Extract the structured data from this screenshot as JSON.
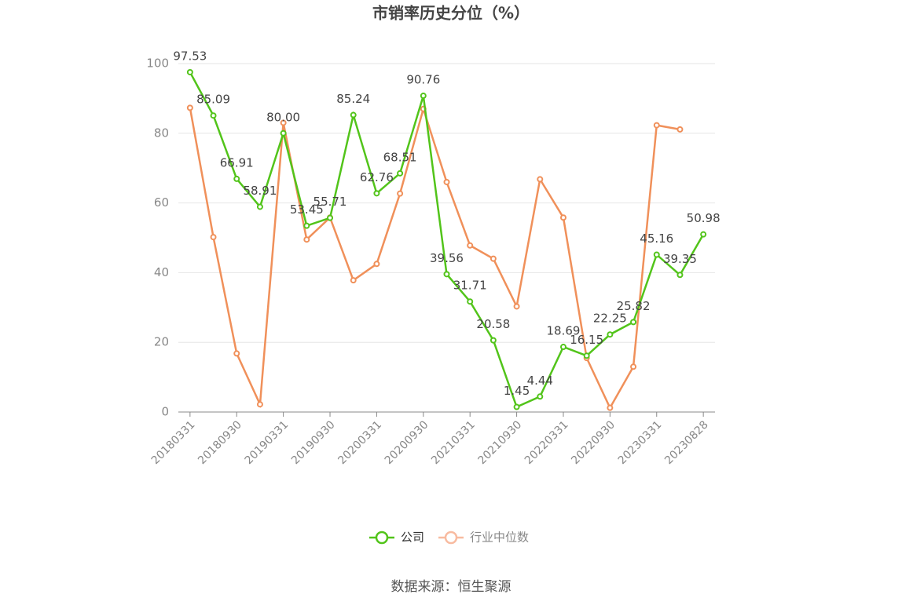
{
  "chart_data": {
    "type": "line",
    "title": "市销率历史分位（%）",
    "source": "数据来源：恒生聚源",
    "categories": [
      "20180331",
      null,
      "20180930",
      null,
      "20190331",
      null,
      "20190930",
      null,
      "20200331",
      null,
      "20200930",
      null,
      "20210331",
      null,
      "20210930",
      null,
      "20220331",
      null,
      "20220930",
      null,
      "20230331",
      null,
      "20230828"
    ],
    "series": [
      {
        "name": "公司",
        "color": "#52c41a",
        "values": [
          97.53,
          85.09,
          66.91,
          58.91,
          80.0,
          53.45,
          55.71,
          85.24,
          62.76,
          68.51,
          90.76,
          39.56,
          31.71,
          20.58,
          1.45,
          4.44,
          18.69,
          16.15,
          22.25,
          25.82,
          45.16,
          39.35,
          50.98
        ],
        "value_labels": [
          "97.53",
          "85.09",
          "66.91",
          "58.91",
          "80.00",
          "53.45",
          "55.71",
          "85.24",
          "62.76",
          "68.51",
          "90.76",
          "39.56",
          "31.71",
          "20.58",
          "1.45",
          "4.44",
          "18.69",
          "16.15",
          "22.25",
          "25.82",
          "45.16",
          "39.35",
          "50.98"
        ]
      },
      {
        "name": "行业中位数",
        "color": "#f0905a",
        "values": [
          87.3,
          50.2,
          16.8,
          2.2,
          83.0,
          49.5,
          55.8,
          37.8,
          42.5,
          62.7,
          87.0,
          66.0,
          47.8,
          44.0,
          30.3,
          66.8,
          55.8,
          15.5,
          1.2,
          13.0,
          82.3,
          81.1,
          null
        ]
      }
    ],
    "ylim": [
      0,
      100
    ],
    "yticks": [
      0,
      20,
      40,
      60,
      80,
      100
    ],
    "grid": true
  }
}
